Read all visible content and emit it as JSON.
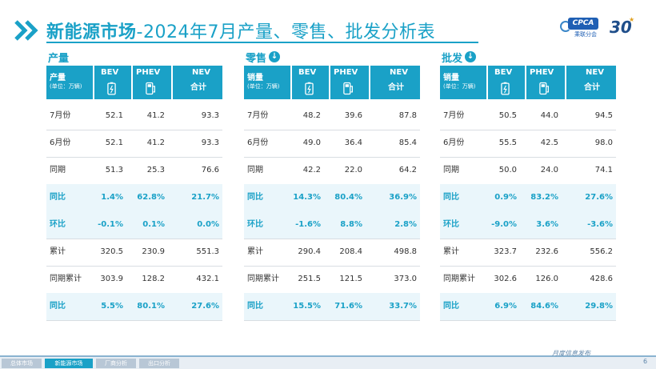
{
  "header": {
    "title_bold": "新能源市场",
    "title_rest": "-2024年7月产量、零售、批发分析表",
    "logo_badge": "CPCA",
    "logo_sub": "乘联分会",
    "anniv_number": "30"
  },
  "col_headers": {
    "bev": "BEV",
    "phev": "PHEV",
    "nev": "NEV",
    "nev_sub": "合计",
    "unit": "(单位：万辆)"
  },
  "panels": [
    {
      "label": "产量",
      "row_header": "产量",
      "rows": [
        {
          "label": "7月份",
          "bev": "52.1",
          "phev": "41.2",
          "nev": "93.3",
          "hl": false
        },
        {
          "label": "6月份",
          "bev": "52.1",
          "phev": "41.2",
          "nev": "93.3",
          "hl": false
        },
        {
          "label": "同期",
          "bev": "51.3",
          "phev": "25.3",
          "nev": "76.6",
          "hl": false
        },
        {
          "label": "同比",
          "bev": "1.4%",
          "phev": "62.8%",
          "nev": "21.7%",
          "hl": true
        },
        {
          "label": "环比",
          "bev": "-0.1%",
          "phev": "0.1%",
          "nev": "0.0%",
          "hl": true
        },
        {
          "label": "累计",
          "bev": "320.5",
          "phev": "230.9",
          "nev": "551.3",
          "hl": false
        },
        {
          "label": "同期累计",
          "bev": "303.9",
          "phev": "128.2",
          "nev": "432.1",
          "hl": false
        },
        {
          "label": "同比",
          "bev": "5.5%",
          "phev": "80.1%",
          "nev": "27.6%",
          "hl": true
        }
      ]
    },
    {
      "label": "零售",
      "row_header": "销量",
      "rows": [
        {
          "label": "7月份",
          "bev": "48.2",
          "phev": "39.6",
          "nev": "87.8",
          "hl": false
        },
        {
          "label": "6月份",
          "bev": "49.0",
          "phev": "36.4",
          "nev": "85.4",
          "hl": false
        },
        {
          "label": "同期",
          "bev": "42.2",
          "phev": "22.0",
          "nev": "64.2",
          "hl": false
        },
        {
          "label": "同比",
          "bev": "14.3%",
          "phev": "80.4%",
          "nev": "36.9%",
          "hl": true
        },
        {
          "label": "环比",
          "bev": "-1.6%",
          "phev": "8.8%",
          "nev": "2.8%",
          "hl": true
        },
        {
          "label": "累计",
          "bev": "290.4",
          "phev": "208.4",
          "nev": "498.8",
          "hl": false
        },
        {
          "label": "同期累计",
          "bev": "251.5",
          "phev": "121.5",
          "nev": "373.0",
          "hl": false
        },
        {
          "label": "同比",
          "bev": "15.5%",
          "phev": "71.6%",
          "nev": "33.7%",
          "hl": true
        }
      ]
    },
    {
      "label": "批发",
      "row_header": "销量",
      "rows": [
        {
          "label": "7月份",
          "bev": "50.5",
          "phev": "44.0",
          "nev": "94.5",
          "hl": false
        },
        {
          "label": "6月份",
          "bev": "55.5",
          "phev": "42.5",
          "nev": "98.0",
          "hl": false
        },
        {
          "label": "同期",
          "bev": "50.0",
          "phev": "24.0",
          "nev": "74.1",
          "hl": false
        },
        {
          "label": "同比",
          "bev": "0.9%",
          "phev": "83.2%",
          "nev": "27.6%",
          "hl": true
        },
        {
          "label": "环比",
          "bev": "-9.0%",
          "phev": "3.6%",
          "nev": "-3.6%",
          "hl": true
        },
        {
          "label": "累计",
          "bev": "323.7",
          "phev": "232.6",
          "nev": "556.2",
          "hl": false
        },
        {
          "label": "同期累计",
          "bev": "302.6",
          "phev": "126.0",
          "nev": "428.6",
          "hl": false
        },
        {
          "label": "同比",
          "bev": "6.9%",
          "phev": "84.6%",
          "nev": "29.8%",
          "hl": true
        }
      ]
    }
  ],
  "footer": {
    "tabs": [
      "总体市场",
      "新能源市场",
      "厂商分析",
      "出口分析"
    ],
    "active_tab": 1,
    "publish": "月度信息发布",
    "page_number": "6"
  },
  "colors": {
    "accent": "#1aa1c7",
    "highlight_bg": "#eaf6fb"
  }
}
